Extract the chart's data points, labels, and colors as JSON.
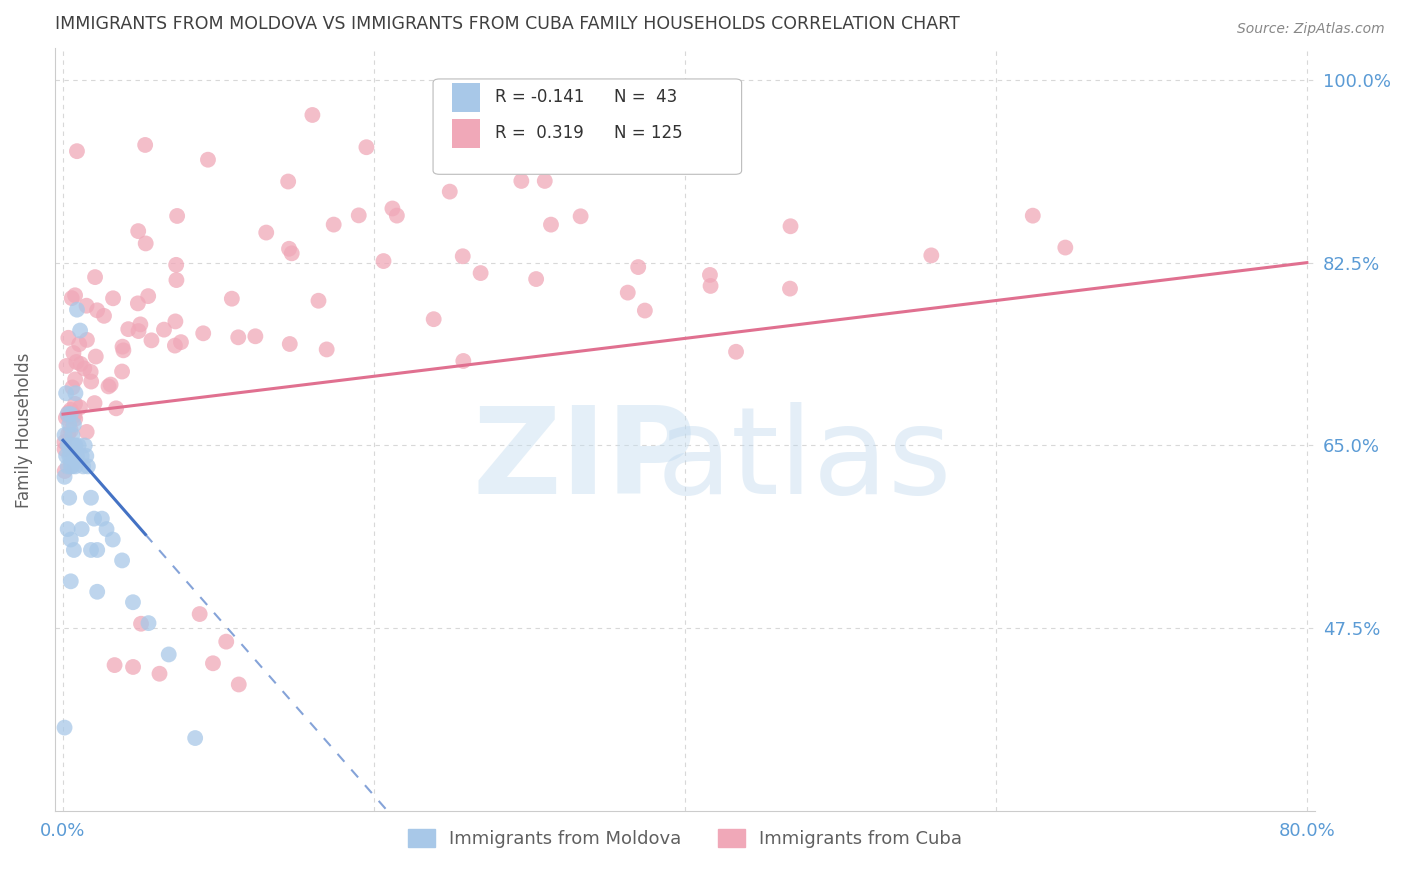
{
  "title": "IMMIGRANTS FROM MOLDOVA VS IMMIGRANTS FROM CUBA FAMILY HOUSEHOLDS CORRELATION CHART",
  "source": "Source: ZipAtlas.com",
  "ylabel": "Family Households",
  "xlim": [
    -0.005,
    0.805
  ],
  "ylim": [
    0.3,
    1.03
  ],
  "yticks": [
    0.475,
    0.65,
    0.825,
    1.0
  ],
  "right_ytick_labels": [
    "47.5%",
    "65.0%",
    "82.5%",
    "100.0%"
  ],
  "xticks": [
    0.0,
    0.2,
    0.4,
    0.6,
    0.8
  ],
  "xtick_labels": [
    "0.0%",
    "",
    "",
    "",
    "80.0%"
  ],
  "moldova_R": -0.141,
  "moldova_N": 43,
  "cuba_R": 0.319,
  "cuba_N": 125,
  "moldova_color": "#a8c8e8",
  "cuba_color": "#f0a8b8",
  "moldova_line_color": "#4472c4",
  "cuba_line_color": "#e07090",
  "background_color": "#ffffff",
  "grid_color": "#d8d8d8",
  "label_color": "#5b9bd5",
  "title_color": "#404040",
  "axis_color": "#cccccc",
  "legend_R_moldova": "R = -0.141",
  "legend_N_moldova": "N =  43",
  "legend_R_cuba": "R =  0.319",
  "legend_N_cuba": "N = 125",
  "legend_label_moldova": "Immigrants from Moldova",
  "legend_label_cuba": "Immigrants from Cuba",
  "moldova_x": [
    0.001,
    0.001,
    0.002,
    0.002,
    0.003,
    0.003,
    0.003,
    0.004,
    0.004,
    0.004,
    0.005,
    0.005,
    0.005,
    0.005,
    0.006,
    0.006,
    0.006,
    0.007,
    0.007,
    0.007,
    0.008,
    0.008,
    0.008,
    0.009,
    0.009,
    0.01,
    0.011,
    0.012,
    0.013,
    0.014,
    0.015,
    0.016,
    0.018,
    0.02,
    0.022,
    0.025,
    0.028,
    0.032,
    0.038,
    0.045,
    0.055,
    0.068,
    0.085
  ],
  "moldova_y": [
    0.62,
    0.66,
    0.64,
    0.7,
    0.63,
    0.65,
    0.68,
    0.64,
    0.65,
    0.67,
    0.63,
    0.64,
    0.65,
    0.68,
    0.63,
    0.65,
    0.66,
    0.64,
    0.65,
    0.67,
    0.63,
    0.65,
    0.7,
    0.64,
    0.78,
    0.65,
    0.76,
    0.64,
    0.63,
    0.65,
    0.64,
    0.63,
    0.6,
    0.58,
    0.55,
    0.58,
    0.57,
    0.56,
    0.54,
    0.5,
    0.48,
    0.45,
    0.37
  ],
  "moldova_extra_low": [
    [
      0.001,
      0.38
    ],
    [
      0.005,
      0.52
    ],
    [
      0.003,
      0.57
    ],
    [
      0.012,
      0.57
    ],
    [
      0.018,
      0.55
    ],
    [
      0.022,
      0.51
    ],
    [
      0.005,
      0.56
    ],
    [
      0.007,
      0.55
    ],
    [
      0.004,
      0.6
    ]
  ],
  "cuba_x": [
    0.001,
    0.002,
    0.003,
    0.004,
    0.005,
    0.006,
    0.007,
    0.008,
    0.009,
    0.01,
    0.012,
    0.014,
    0.016,
    0.018,
    0.02,
    0.023,
    0.026,
    0.03,
    0.034,
    0.038,
    0.043,
    0.048,
    0.054,
    0.06,
    0.067,
    0.075,
    0.083,
    0.092,
    0.102,
    0.113,
    0.125,
    0.138,
    0.152,
    0.167,
    0.183,
    0.2,
    0.218,
    0.237,
    0.258,
    0.28,
    0.303,
    0.328,
    0.354,
    0.382,
    0.411,
    0.441,
    0.473,
    0.506,
    0.541,
    0.577,
    0.614,
    0.654
  ],
  "cuba_y_mean": [
    0.68,
    0.69,
    0.7,
    0.7,
    0.71,
    0.71,
    0.72,
    0.72,
    0.72,
    0.73,
    0.73,
    0.73,
    0.74,
    0.74,
    0.74,
    0.74,
    0.75,
    0.75,
    0.75,
    0.75,
    0.75,
    0.76,
    0.76,
    0.76,
    0.76,
    0.76,
    0.77,
    0.77,
    0.77,
    0.77,
    0.77,
    0.78,
    0.78,
    0.78,
    0.78,
    0.78,
    0.79,
    0.79,
    0.79,
    0.79,
    0.79,
    0.79,
    0.8,
    0.8,
    0.8,
    0.8,
    0.8,
    0.81,
    0.81,
    0.81,
    0.81,
    0.81
  ],
  "watermark_zip": "ZIP",
  "watermark_atlas": "atlas"
}
